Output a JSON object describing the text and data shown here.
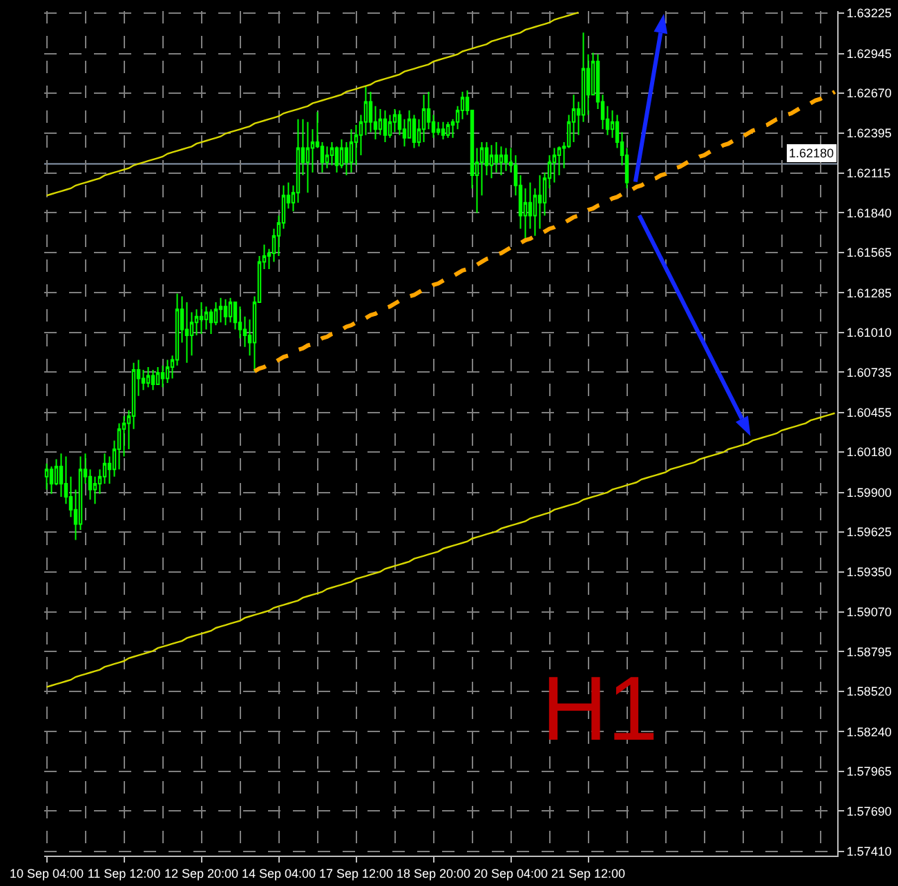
{
  "chart_data": {
    "type": "candlestick",
    "color": "#00ff00",
    "categories": [
      "10 Sep 04:00",
      null,
      null,
      null,
      null,
      null,
      null,
      null,
      null,
      null,
      null,
      null,
      null,
      null,
      null,
      null,
      "11 Sep 12:00",
      null,
      null,
      null,
      null,
      null,
      null,
      null,
      null,
      null,
      null,
      null,
      null,
      null,
      null,
      null,
      "12 Sep 20:00",
      null,
      null,
      null,
      null,
      null,
      null,
      null,
      null,
      null,
      null,
      null,
      null,
      null,
      null,
      null,
      "14 Sep 04:00",
      null,
      null,
      null,
      null,
      null,
      null,
      null,
      null,
      null,
      null,
      null,
      null,
      null,
      null,
      null,
      "17 Sep 12:00",
      null,
      null,
      null,
      null,
      null,
      null,
      null,
      null,
      null,
      null,
      null,
      null,
      null,
      null,
      null,
      "18 Sep 20:00",
      null,
      null,
      null,
      null,
      null,
      null,
      null,
      null,
      null,
      null,
      null,
      null,
      null,
      null,
      null,
      "20 Sep 04:00",
      null,
      null,
      null,
      null,
      null,
      null,
      null,
      null,
      null,
      null,
      null,
      null,
      null,
      null,
      null,
      "21 Sep 12:00",
      null,
      null,
      null,
      null,
      null,
      null,
      null,
      null,
      null,
      null,
      null,
      null,
      null,
      null,
      null,
      null,
      null,
      null,
      null,
      null,
      null,
      null,
      null,
      null,
      null,
      null,
      null,
      null,
      null,
      null,
      null,
      null,
      null,
      null,
      null,
      null,
      null,
      null,
      null,
      null,
      null,
      null,
      null,
      null,
      null,
      null,
      null,
      null,
      null,
      null,
      null
    ],
    "ohlc": [
      [
        1.6001,
        1.601,
        1.5992,
        1.6006
      ],
      [
        1.6006,
        1.6008,
        1.5989,
        1.5996
      ],
      [
        1.5996,
        1.6013,
        1.5995,
        1.6008
      ],
      [
        1.6008,
        1.6017,
        1.5987,
        1.5996
      ],
      [
        1.5996,
        1.6015,
        1.5982,
        1.5987
      ],
      [
        1.5987,
        1.6001,
        1.5973,
        1.5978
      ],
      [
        1.5978,
        1.5992,
        1.5957,
        1.5968
      ],
      [
        1.5968,
        1.6015,
        1.5964,
        1.6006
      ],
      [
        1.6006,
        1.6017,
        1.5996,
        1.6001
      ],
      [
        1.6001,
        1.6006,
        1.5985,
        1.5992
      ],
      [
        1.5992,
        1.6001,
        1.5982,
        1.5996
      ],
      [
        1.5996,
        1.6006,
        1.5989,
        1.6001
      ],
      [
        1.6001,
        1.6017,
        1.5996,
        1.601
      ],
      [
        1.601,
        1.6015,
        1.5996,
        1.6006
      ],
      [
        1.6006,
        1.6026,
        1.6001,
        1.602
      ],
      [
        1.602,
        1.6038,
        1.6006,
        1.6034
      ],
      [
        1.6034,
        1.6043,
        1.6015,
        1.6038
      ],
      [
        1.6038,
        1.6047,
        1.602,
        1.6043
      ],
      [
        1.6043,
        1.608,
        1.6034,
        1.6075
      ],
      [
        1.6075,
        1.6082,
        1.6057,
        1.6069
      ],
      [
        1.6069,
        1.6075,
        1.6061,
        1.6066
      ],
      [
        1.6066,
        1.6077,
        1.6063,
        1.6071
      ],
      [
        1.6071,
        1.6075,
        1.6061,
        1.6065
      ],
      [
        1.6065,
        1.6077,
        1.6065,
        1.6073
      ],
      [
        1.6073,
        1.6078,
        1.6063,
        1.6069
      ],
      [
        1.6069,
        1.6082,
        1.6066,
        1.6077
      ],
      [
        1.6077,
        1.6085,
        1.6069,
        1.6082
      ],
      [
        1.6082,
        1.6128,
        1.6078,
        1.6117
      ],
      [
        1.6117,
        1.6126,
        1.6094,
        1.6103
      ],
      [
        1.6103,
        1.6122,
        1.608,
        1.6099
      ],
      [
        1.6099,
        1.6115,
        1.6085,
        1.6108
      ],
      [
        1.6108,
        1.6117,
        1.6099,
        1.6112
      ],
      [
        1.6112,
        1.6122,
        1.61,
        1.611
      ],
      [
        1.611,
        1.6119,
        1.6103,
        1.6115
      ],
      [
        1.6115,
        1.6117,
        1.61,
        1.6108
      ],
      [
        1.6108,
        1.6122,
        1.6106,
        1.6117
      ],
      [
        1.6117,
        1.6125,
        1.6108,
        1.6119
      ],
      [
        1.6119,
        1.6124,
        1.6106,
        1.6112
      ],
      [
        1.6112,
        1.6125,
        1.6108,
        1.6122
      ],
      [
        1.6122,
        1.6122,
        1.6103,
        1.6108
      ],
      [
        1.6108,
        1.6119,
        1.6097,
        1.6103
      ],
      [
        1.6103,
        1.6112,
        1.6091,
        1.6099
      ],
      [
        1.6099,
        1.611,
        1.6085,
        1.6094
      ],
      [
        1.6094,
        1.6126,
        1.6074,
        1.6122
      ],
      [
        1.6122,
        1.6154,
        1.6122,
        1.615
      ],
      [
        1.615,
        1.6162,
        1.6145,
        1.6154
      ],
      [
        1.6154,
        1.6159,
        1.6145,
        1.6156
      ],
      [
        1.6156,
        1.6173,
        1.615,
        1.6168
      ],
      [
        1.6168,
        1.6182,
        1.6154,
        1.6177
      ],
      [
        1.6177,
        1.6203,
        1.6173,
        1.6196
      ],
      [
        1.6196,
        1.6205,
        1.6187,
        1.6191
      ],
      [
        1.6191,
        1.6203,
        1.6185,
        1.6198
      ],
      [
        1.6198,
        1.6249,
        1.6191,
        1.6229
      ],
      [
        1.6229,
        1.6249,
        1.621,
        1.6219
      ],
      [
        1.6219,
        1.6247,
        1.6198,
        1.6229
      ],
      [
        1.6229,
        1.6242,
        1.6212,
        1.6233
      ],
      [
        1.6233,
        1.6254,
        1.6229,
        1.623
      ],
      [
        1.623,
        1.6233,
        1.6212,
        1.6219
      ],
      [
        1.6219,
        1.623,
        1.6215,
        1.6224
      ],
      [
        1.6224,
        1.6233,
        1.6217,
        1.6229
      ],
      [
        1.6229,
        1.623,
        1.6212,
        1.6217
      ],
      [
        1.6217,
        1.6235,
        1.6215,
        1.6229
      ],
      [
        1.6229,
        1.6233,
        1.621,
        1.6219
      ],
      [
        1.6219,
        1.6242,
        1.6212,
        1.6233
      ],
      [
        1.6233,
        1.6245,
        1.6217,
        1.6238
      ],
      [
        1.6238,
        1.6252,
        1.6224,
        1.6247
      ],
      [
        1.6247,
        1.6272,
        1.6238,
        1.6261
      ],
      [
        1.6261,
        1.6268,
        1.624,
        1.6247
      ],
      [
        1.6247,
        1.6258,
        1.6235,
        1.6242
      ],
      [
        1.6242,
        1.6256,
        1.6238,
        1.6249
      ],
      [
        1.6249,
        1.6255,
        1.6233,
        1.6238
      ],
      [
        1.6238,
        1.6252,
        1.6236,
        1.6247
      ],
      [
        1.6247,
        1.6256,
        1.624,
        1.6252
      ],
      [
        1.6252,
        1.6255,
        1.6238,
        1.6242
      ],
      [
        1.6242,
        1.6249,
        1.623,
        1.6236
      ],
      [
        1.6236,
        1.6255,
        1.6236,
        1.6249
      ],
      [
        1.6249,
        1.6252,
        1.6229,
        1.6233
      ],
      [
        1.6233,
        1.6249,
        1.623,
        1.6242
      ],
      [
        1.6242,
        1.6266,
        1.6233,
        1.6256
      ],
      [
        1.6256,
        1.6268,
        1.6242,
        1.6247
      ],
      [
        1.6247,
        1.6252,
        1.6236,
        1.624
      ],
      [
        1.624,
        1.6247,
        1.6238,
        1.6242
      ],
      [
        1.6242,
        1.6247,
        1.6235,
        1.6238
      ],
      [
        1.6238,
        1.6247,
        1.6236,
        1.6245
      ],
      [
        1.6245,
        1.6249,
        1.6236,
        1.6247
      ],
      [
        1.6247,
        1.6258,
        1.6242,
        1.6255
      ],
      [
        1.6255,
        1.6268,
        1.6249,
        1.6264
      ],
      [
        1.6264,
        1.6269,
        1.6252,
        1.6255
      ],
      [
        1.6255,
        1.6255,
        1.6201,
        1.621
      ],
      [
        1.621,
        1.6229,
        1.6184,
        1.6219
      ],
      [
        1.6219,
        1.6233,
        1.6196,
        1.6229
      ],
      [
        1.6229,
        1.6233,
        1.621,
        1.6217
      ],
      [
        1.6217,
        1.6231,
        1.6208,
        1.6224
      ],
      [
        1.6224,
        1.6233,
        1.6212,
        1.6219
      ],
      [
        1.6219,
        1.623,
        1.621,
        1.6224
      ],
      [
        1.6224,
        1.6229,
        1.6213,
        1.6219
      ],
      [
        1.6219,
        1.6229,
        1.6212,
        1.6217
      ],
      [
        1.6217,
        1.6224,
        1.6196,
        1.6203
      ],
      [
        1.6203,
        1.621,
        1.6173,
        1.6182
      ],
      [
        1.6182,
        1.6201,
        1.6165,
        1.6191
      ],
      [
        1.6191,
        1.6205,
        1.6173,
        1.6182
      ],
      [
        1.6182,
        1.6201,
        1.6168,
        1.6196
      ],
      [
        1.6196,
        1.621,
        1.6173,
        1.6191
      ],
      [
        1.6191,
        1.6212,
        1.6182,
        1.6208
      ],
      [
        1.6208,
        1.6224,
        1.6201,
        1.6219
      ],
      [
        1.6219,
        1.6229,
        1.6205,
        1.6224
      ],
      [
        1.6224,
        1.623,
        1.621,
        1.6229
      ],
      [
        1.6229,
        1.6233,
        1.6215,
        1.623
      ],
      [
        1.623,
        1.6252,
        1.6229,
        1.6247
      ],
      [
        1.6247,
        1.6266,
        1.6233,
        1.6256
      ],
      [
        1.6256,
        1.6261,
        1.6238,
        1.6252
      ],
      [
        1.6252,
        1.6309,
        1.6247,
        1.6284
      ],
      [
        1.6284,
        1.6294,
        1.6252,
        1.6266
      ],
      [
        1.6266,
        1.6295,
        1.6266,
        1.6289
      ],
      [
        1.6289,
        1.6294,
        1.6256,
        1.6261
      ],
      [
        1.6261,
        1.6266,
        1.6242,
        1.6249
      ],
      [
        1.6249,
        1.6258,
        1.6238,
        1.6242
      ],
      [
        1.6242,
        1.6255,
        1.6236,
        1.6247
      ],
      [
        1.6247,
        1.6252,
        1.6229,
        1.6233
      ],
      [
        1.6233,
        1.624,
        1.6217,
        1.6224
      ],
      [
        1.6224,
        1.6229,
        1.6201,
        1.6205
      ],
      null,
      null,
      null,
      null,
      null,
      null,
      null,
      null,
      null,
      null,
      null,
      null,
      null,
      null,
      null,
      null,
      null,
      null,
      null,
      null,
      null,
      null,
      null,
      null,
      null,
      null,
      null,
      null,
      null,
      null,
      null,
      null,
      null,
      null,
      null,
      null,
      null,
      null,
      null,
      null,
      null,
      null,
      null
    ],
    "series": [
      {
        "type": "line",
        "color": "#d8d800",
        "line_style": "solid",
        "values": [
          1.6196,
          1.6197,
          1.6198,
          1.6199,
          1.62,
          1.6201,
          1.6203,
          1.6204,
          1.6205,
          1.6206,
          1.6207,
          1.6208,
          1.621,
          1.6211,
          1.6212,
          1.6213,
          1.6214,
          1.6215,
          1.6217,
          1.6218,
          1.6219,
          1.622,
          1.6221,
          1.6222,
          1.6223,
          1.6225,
          1.6226,
          1.6227,
          1.6228,
          1.6229,
          1.623,
          1.6232,
          1.6233,
          1.6234,
          1.6235,
          1.6236,
          1.6237,
          1.6239,
          1.624,
          1.6241,
          1.6242,
          1.6243,
          1.6244,
          1.6246,
          1.6247,
          1.6248,
          1.6249,
          1.625,
          1.6251,
          1.6253,
          1.6254,
          1.6255,
          1.6256,
          1.6257,
          1.6258,
          1.626,
          1.6261,
          1.6262,
          1.6263,
          1.6264,
          1.6265,
          1.6266,
          1.6268,
          1.6269,
          1.627,
          1.6271,
          1.6272,
          1.6273,
          1.6275,
          1.6276,
          1.6277,
          1.6278,
          1.6279,
          1.628,
          1.6282,
          1.6283,
          1.6284,
          1.6285,
          1.6286,
          1.6287,
          1.6289,
          1.629,
          1.6291,
          1.6292,
          1.6293,
          1.6294,
          1.6296,
          1.6297,
          1.6298,
          1.6299,
          1.63,
          1.6301,
          1.6303,
          1.6304,
          1.6305,
          1.6306,
          1.6307,
          1.6308,
          1.6309,
          1.6311,
          1.6312,
          1.6313,
          1.6314,
          1.6315,
          1.6316,
          1.6318,
          1.6319,
          1.632,
          1.6321,
          1.6322,
          1.6323,
          null,
          null,
          null,
          null,
          null,
          null,
          null,
          null,
          null,
          null,
          null,
          null,
          null,
          null,
          null,
          null,
          null,
          null,
          null,
          null,
          null,
          null,
          null,
          null,
          null,
          null,
          null,
          null,
          null,
          null,
          null,
          null,
          null,
          null,
          null,
          null,
          null,
          null,
          null,
          null,
          null,
          null,
          null,
          null,
          null,
          null,
          null,
          null,
          null,
          null,
          null,
          null,
          null
        ]
      },
      {
        "type": "line",
        "color": "#d8d800",
        "line_style": "solid",
        "values": [
          1.5855,
          1.5856,
          1.5857,
          1.5858,
          1.5859,
          1.586,
          1.5862,
          1.5863,
          1.5864,
          1.5865,
          1.5866,
          1.5867,
          1.5869,
          1.587,
          1.5871,
          1.5872,
          1.5873,
          1.5875,
          1.5876,
          1.5877,
          1.5878,
          1.5879,
          1.588,
          1.5882,
          1.5883,
          1.5884,
          1.5885,
          1.5886,
          1.5887,
          1.5889,
          1.589,
          1.5891,
          1.5892,
          1.5893,
          1.5894,
          1.5896,
          1.5897,
          1.5898,
          1.5899,
          1.59,
          1.5901,
          1.5903,
          1.5904,
          1.5905,
          1.5906,
          1.5907,
          1.5908,
          1.591,
          1.5911,
          1.5912,
          1.5913,
          1.5914,
          1.5915,
          1.5917,
          1.5918,
          1.5919,
          1.592,
          1.5921,
          1.5923,
          1.5924,
          1.5925,
          1.5926,
          1.5927,
          1.5928,
          1.593,
          1.5931,
          1.5932,
          1.5933,
          1.5934,
          1.5935,
          1.5937,
          1.5938,
          1.5939,
          1.594,
          1.5941,
          1.5942,
          1.5944,
          1.5945,
          1.5946,
          1.5947,
          1.5948,
          1.5949,
          1.5951,
          1.5952,
          1.5953,
          1.5954,
          1.5955,
          1.5956,
          1.5958,
          1.5959,
          1.596,
          1.5961,
          1.5962,
          1.5963,
          1.5965,
          1.5966,
          1.5967,
          1.5968,
          1.5969,
          1.597,
          1.5972,
          1.5973,
          1.5974,
          1.5975,
          1.5976,
          1.5978,
          1.5979,
          1.598,
          1.5981,
          1.5982,
          1.5983,
          1.5985,
          1.5986,
          1.5987,
          1.5988,
          1.5989,
          1.599,
          1.5992,
          1.5993,
          1.5994,
          1.5995,
          1.5996,
          1.5997,
          1.5999,
          1.6,
          1.6001,
          1.6002,
          1.6003,
          1.6004,
          1.6006,
          1.6007,
          1.6008,
          1.6009,
          1.601,
          1.6011,
          1.6013,
          1.6014,
          1.6015,
          1.6016,
          1.6017,
          1.6018,
          1.602,
          1.6021,
          1.6022,
          1.6023,
          1.6024,
          1.6026,
          1.6027,
          1.6028,
          1.6029,
          1.603,
          1.6031,
          1.6033,
          1.6034,
          1.6035,
          1.6036,
          1.6037,
          1.6038,
          1.604,
          1.6041,
          1.6042,
          1.6043,
          1.6044,
          1.6045
        ]
      },
      {
        "type": "line",
        "color": "#ffa500",
        "line_style": "dashed",
        "values": [
          null,
          null,
          null,
          null,
          null,
          null,
          null,
          null,
          null,
          null,
          null,
          null,
          null,
          null,
          null,
          null,
          null,
          null,
          null,
          null,
          null,
          null,
          null,
          null,
          null,
          null,
          null,
          null,
          null,
          null,
          null,
          null,
          null,
          null,
          null,
          null,
          null,
          null,
          null,
          null,
          null,
          null,
          null,
          1.6074,
          1.6076,
          1.6077,
          1.6079,
          1.608,
          1.6082,
          1.6084,
          1.6085,
          1.6087,
          1.6089,
          1.609,
          1.6092,
          1.6093,
          1.6095,
          1.6097,
          1.6098,
          1.61,
          1.6101,
          1.6103,
          1.6105,
          1.6106,
          1.6108,
          1.611,
          1.6111,
          1.6113,
          1.6114,
          1.6116,
          1.6118,
          1.6119,
          1.6121,
          1.6123,
          1.6124,
          1.6126,
          1.6127,
          1.6129,
          1.6131,
          1.6132,
          1.6134,
          1.6135,
          1.6137,
          1.6139,
          1.614,
          1.6142,
          1.6144,
          1.6145,
          1.6147,
          1.6148,
          1.615,
          1.6152,
          1.6153,
          1.6155,
          1.6156,
          1.6158,
          1.616,
          1.6161,
          1.6163,
          1.6165,
          1.6166,
          1.6168,
          1.6169,
          1.6171,
          1.6173,
          1.6174,
          1.6176,
          1.6177,
          1.6179,
          1.6181,
          1.6182,
          1.6184,
          1.6186,
          1.6187,
          1.6189,
          1.619,
          1.6192,
          1.6194,
          1.6195,
          1.6197,
          1.6198,
          1.62,
          1.6202,
          1.6203,
          1.6205,
          1.6207,
          1.6208,
          1.621,
          1.6211,
          1.6213,
          1.6215,
          1.6216,
          1.6218,
          1.622,
          1.6221,
          1.6223,
          1.6224,
          1.6226,
          1.6228,
          1.6229,
          1.6231,
          1.6232,
          1.6234,
          1.6236,
          1.6237,
          1.6239,
          1.6241,
          1.6242,
          1.6244,
          1.6245,
          1.6247,
          1.6249,
          1.625,
          1.6252,
          1.6253,
          1.6255,
          1.6257,
          1.6258,
          1.626,
          1.6262,
          1.6263,
          1.6265,
          1.6266,
          1.6268
        ]
      }
    ],
    "ylim": [
      1.5738,
      1.6324
    ],
    "yticks": [
      1.63225,
      1.62945,
      {
        "value": 1.6267,
        "label": "1.62670"
      },
      1.62395,
      1.62115,
      {
        "value": 1.6184,
        "label": "1.61840"
      },
      1.61565,
      1.61285,
      {
        "value": 1.6101,
        "label": "1.61010"
      },
      1.60735,
      1.60455,
      {
        "value": 1.6018,
        "label": "1.60180"
      },
      {
        "value": 1.599,
        "label": "1.59900"
      },
      1.59625,
      {
        "value": 1.5935,
        "label": "1.59350"
      },
      {
        "value": 1.5907,
        "label": "1.59070"
      },
      1.58795,
      {
        "value": 1.5852,
        "label": "1.58520"
      },
      {
        "value": 1.5824,
        "label": "1.58240"
      },
      1.57965,
      {
        "value": 1.5769,
        "label": "1.57690"
      },
      {
        "value": 1.5741,
        "label": "1.57410"
      }
    ],
    "ref_lines": [
      {
        "axis": "y",
        "value": 1.6218,
        "label": "1.62180",
        "color": "#8b9bb0"
      }
    ],
    "annotations": [
      "H1"
    ],
    "grid": true
  }
}
